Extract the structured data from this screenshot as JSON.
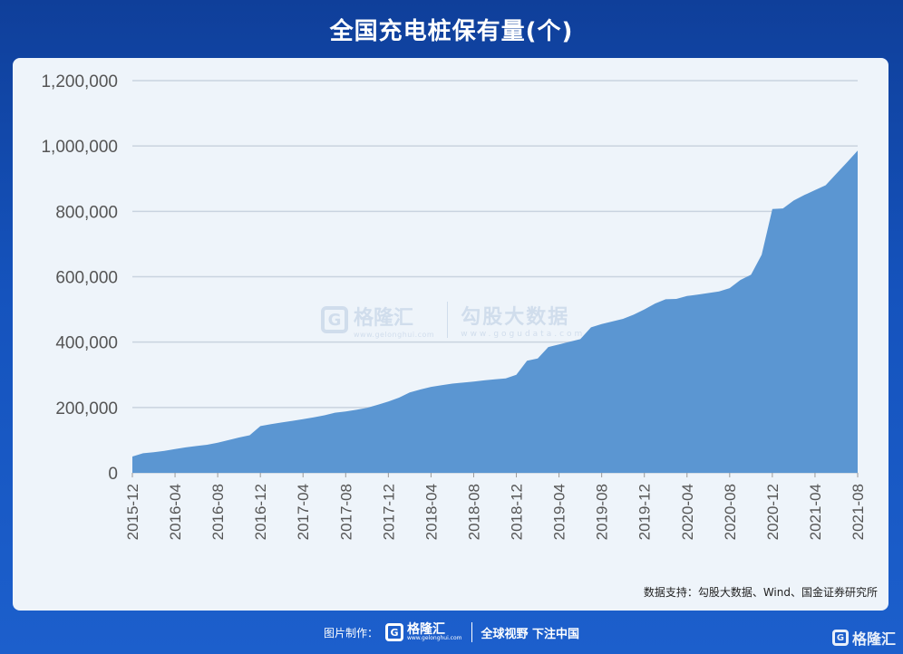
{
  "title": "全国充电桩保有量(个)",
  "source": "数据支持：勾股大数据、Wind、国金证券研究所",
  "watermark": {
    "brand_mark": "G",
    "brand_name": "格隆汇",
    "brand_url": "www.gelonghui.com",
    "partner_name": "勾股大数据",
    "partner_url": "www.gogudata.com"
  },
  "footer": {
    "label": "图片制作：",
    "brand_mark": "G",
    "brand_name": "格隆汇",
    "brand_url": "www.gelonghui.com",
    "slogan": "全球视野 下注中国"
  },
  "corner_brand": {
    "mark": "G",
    "name": "格隆汇"
  },
  "colors": {
    "area": "#5b96d2",
    "grid": "#c9d3df",
    "axis_text": "#555555"
  },
  "chart_data": {
    "type": "area",
    "title": "全国充电桩保有量(个)",
    "xlabel": "",
    "ylabel": "",
    "ylim": [
      0,
      1200000
    ],
    "yticks": [
      0,
      200000,
      400000,
      600000,
      800000,
      1000000,
      1200000
    ],
    "ytick_labels": [
      "0",
      "200,000",
      "400,000",
      "600,000",
      "800,000",
      "1,000,000",
      "1,200,000"
    ],
    "xtick_labels": [
      "2015-12",
      "2016-04",
      "2016-08",
      "2016-12",
      "2017-04",
      "2017-08",
      "2017-12",
      "2018-04",
      "2018-08",
      "2018-12",
      "2019-04",
      "2019-08",
      "2019-12",
      "2020-04",
      "2020-08",
      "2020-12",
      "2021-04",
      "2021-08"
    ],
    "grid": true,
    "legend": "none",
    "x": [
      "2015-12",
      "2016-01",
      "2016-02",
      "2016-03",
      "2016-04",
      "2016-05",
      "2016-06",
      "2016-07",
      "2016-08",
      "2016-09",
      "2016-10",
      "2016-11",
      "2016-12",
      "2017-01",
      "2017-02",
      "2017-03",
      "2017-04",
      "2017-05",
      "2017-06",
      "2017-07",
      "2017-08",
      "2017-09",
      "2017-10",
      "2017-11",
      "2017-12",
      "2018-01",
      "2018-02",
      "2018-03",
      "2018-04",
      "2018-05",
      "2018-06",
      "2018-07",
      "2018-08",
      "2018-09",
      "2018-10",
      "2018-11",
      "2018-12",
      "2019-01",
      "2019-02",
      "2019-03",
      "2019-04",
      "2019-05",
      "2019-06",
      "2019-07",
      "2019-08",
      "2019-09",
      "2019-10",
      "2019-11",
      "2019-12",
      "2020-01",
      "2020-02",
      "2020-03",
      "2020-04",
      "2020-05",
      "2020-06",
      "2020-07",
      "2020-08",
      "2020-09",
      "2020-10",
      "2020-11",
      "2020-12",
      "2021-01",
      "2021-02",
      "2021-03",
      "2021-04",
      "2021-05",
      "2021-06",
      "2021-07",
      "2021-08"
    ],
    "values": [
      50000,
      60000,
      63000,
      67000,
      73000,
      78000,
      82000,
      86000,
      92000,
      100000,
      108000,
      115000,
      143000,
      149000,
      154000,
      159000,
      164000,
      170000,
      176000,
      184000,
      188000,
      193000,
      199000,
      208000,
      218000,
      230000,
      246000,
      255000,
      263000,
      268000,
      273000,
      276000,
      279000,
      283000,
      286000,
      289000,
      300000,
      343000,
      350000,
      385000,
      393000,
      401000,
      409000,
      445000,
      455000,
      463000,
      471000,
      484000,
      500000,
      518000,
      531000,
      532000,
      541000,
      545000,
      550000,
      555000,
      565000,
      590000,
      606000,
      667000,
      807000,
      809000,
      833000,
      850000,
      865000,
      880000,
      915000,
      950000,
      986000
    ]
  }
}
